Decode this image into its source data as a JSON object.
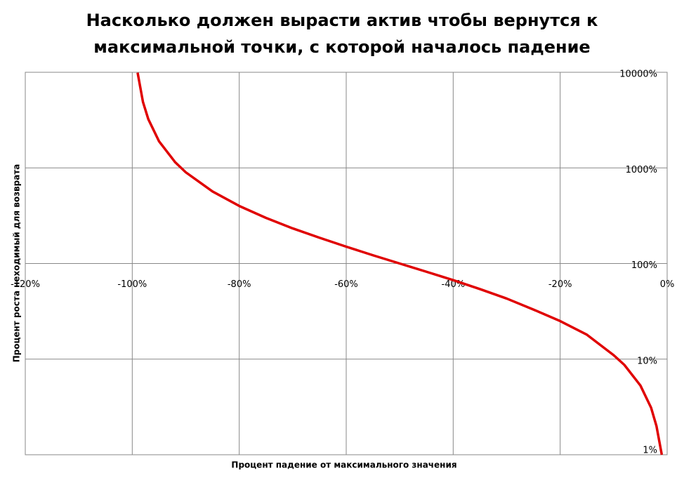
{
  "chart_data": {
    "type": "line",
    "title": [
      "Насколько должен вырасти актив чтобы вернутся к",
      "максимальной точки, с которой началось падение"
    ],
    "x_label": "Процент падение от максимального  значения",
    "y_label": "Процент роста неходимый для возврата",
    "x": [
      -99,
      -98,
      -97,
      -95,
      -92,
      -90,
      -85,
      -80,
      -75,
      -70,
      -65,
      -60,
      -55,
      -50,
      -45,
      -40,
      -35,
      -30,
      -25,
      -20,
      -15,
      -10,
      -8,
      -5,
      -3,
      -2,
      -1
    ],
    "series": [
      {
        "color": "#e00000",
        "values": [
          9900,
          4900,
          3233,
          1900,
          1150,
          900,
          567,
          400,
          300,
          233,
          186,
          150,
          122,
          100,
          82,
          67,
          54,
          43,
          33,
          25,
          18,
          11,
          8.7,
          5.3,
          3.1,
          2,
          1
        ]
      }
    ],
    "xlim": [
      -120,
      0
    ],
    "xticks": [
      {
        "value": -120,
        "label": "-120%"
      },
      {
        "value": -100,
        "label": "-100%"
      },
      {
        "value": -80,
        "label": "-80%"
      },
      {
        "value": -60,
        "label": "-60%"
      },
      {
        "value": -40,
        "label": "-40%"
      },
      {
        "value": -20,
        "label": "-20%"
      },
      {
        "value": 0,
        "label": "0%"
      }
    ],
    "ylim": [
      1,
      10000
    ],
    "yticks": [
      {
        "value": 1,
        "label": "1%"
      },
      {
        "value": 10,
        "label": "10%"
      },
      {
        "value": 100,
        "label": "100%"
      },
      {
        "value": 1000,
        "label": "1000%"
      },
      {
        "value": 10000,
        "label": "10000%"
      }
    ],
    "y_scale": "log",
    "grid": true
  }
}
